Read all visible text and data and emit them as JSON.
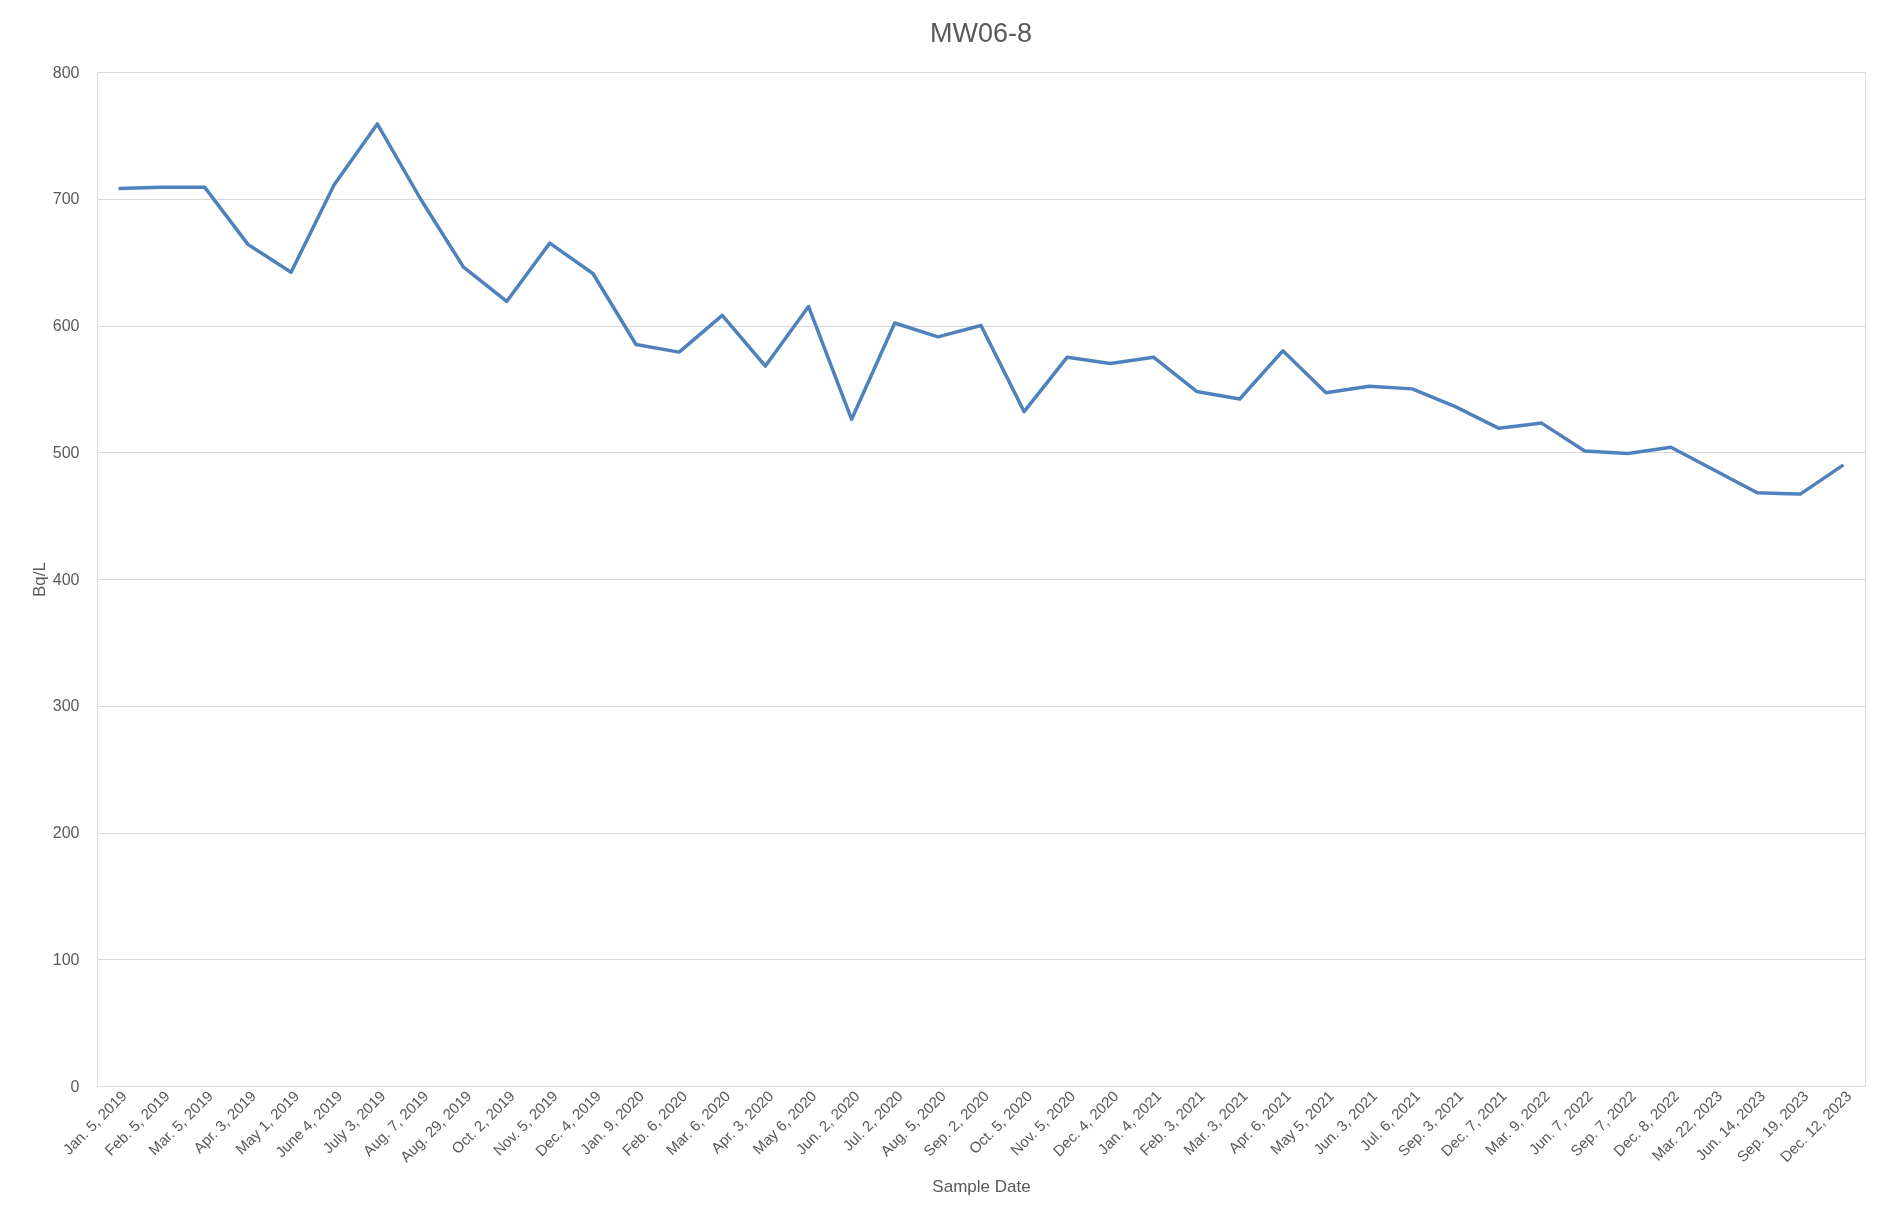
{
  "chart_data": {
    "type": "line",
    "title": "MW06-8",
    "xlabel": "Sample Date",
    "ylabel": "Bq/L",
    "categories": [
      "Jan. 5, 2019",
      "Feb. 5, 2019",
      "Mar. 5, 2019",
      "Apr. 3, 2019",
      "May 1, 2019",
      "June 4, 2019",
      "July 3, 2019",
      "Aug. 7, 2019",
      "Aug. 29, 2019",
      "Oct. 2, 2019",
      "Nov. 5, 2019",
      "Dec. 4, 2019",
      "Jan. 9, 2020",
      "Feb. 6, 2020",
      "Mar. 6, 2020",
      "Apr. 3, 2020",
      "May 6, 2020",
      "Jun. 2, 2020",
      "Jul. 2, 2020",
      "Aug. 5, 2020",
      "Sep. 2, 2020",
      "Oct. 5, 2020",
      "Nov. 5, 2020",
      "Dec. 4, 2020",
      "Jan. 4, 2021",
      "Feb. 3, 2021",
      "Mar. 3, 2021",
      "Apr. 6, 2021",
      "May 5, 2021",
      "Jun. 3, 2021",
      "Jul. 6, 2021",
      "Sep. 3, 2021",
      "Dec. 7, 2021",
      "Mar. 9, 2022",
      "Jun. 7, 2022",
      "Sep. 7, 2022",
      "Dec. 8, 2022",
      "Mar. 22, 2023",
      "Jun. 14, 2023",
      "Sep. 19, 2023",
      "Dec. 12, 2023"
    ],
    "series": [
      {
        "color": "#4f81bd",
        "values": [
          708,
          709,
          709,
          664,
          642,
          711,
          759,
          700,
          646,
          619,
          665,
          641,
          585,
          579,
          608,
          568,
          615,
          526,
          602,
          591,
          600,
          532,
          575,
          570,
          575,
          548,
          542,
          580,
          547,
          552,
          550,
          536,
          519,
          523,
          501,
          499,
          504,
          486,
          468,
          467,
          490
        ]
      }
    ],
    "ylim": [
      0,
      800
    ],
    "yticks": [
      0,
      100,
      200,
      300,
      400,
      500,
      600,
      700,
      800
    ],
    "grid": "y",
    "marker": "none",
    "line_style": "solid"
  }
}
